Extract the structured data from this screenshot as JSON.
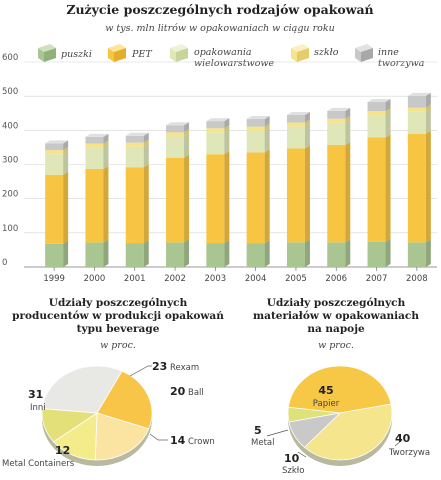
{
  "colors": {
    "puszki": "#a9c591",
    "pet": "#f8c543",
    "wielowarstwowe": "#dfe7b8",
    "szklo": "#f6e38a",
    "inne": "#c8c8c8",
    "pie1": [
      "#f9c548",
      "#fbe3a2",
      "#f4eb8a",
      "#e3e07a",
      "#e8e8e4"
    ],
    "pie2": [
      "#f7c846",
      "#f5e58c",
      "#c9c9c9",
      "#dde27a"
    ]
  },
  "chart_data": [
    {
      "type": "bar",
      "stacked": true,
      "title": "Zużycie poszczególnych rodzajów opakowań",
      "subtitle": "w tys. mln litrów w opakowaniach w ciągu roku",
      "categories": [
        "1999",
        "2000",
        "2001",
        "2002",
        "2003",
        "2004",
        "2005",
        "2006",
        "2007",
        "2008"
      ],
      "ylim": [
        0,
        600
      ],
      "yticks": [
        "0",
        "100",
        "200",
        "300",
        "400",
        "500",
        "600"
      ],
      "grid": true,
      "legend_position": "top",
      "series": [
        {
          "name": "puszki",
          "values": [
            68,
            72,
            70,
            72,
            70,
            70,
            72,
            72,
            74,
            72
          ]
        },
        {
          "name": "PET",
          "values": [
            202,
            215,
            222,
            248,
            260,
            265,
            275,
            285,
            305,
            318
          ]
        },
        {
          "name": "opakowania wielowarstwowe",
          "values": [
            60,
            62,
            60,
            62,
            64,
            64,
            64,
            65,
            65,
            64
          ]
        },
        {
          "name": "szkło",
          "values": [
            12,
            12,
            12,
            12,
            12,
            12,
            12,
            12,
            12,
            12
          ]
        },
        {
          "name": "inne tworzywa",
          "values": [
            20,
            20,
            20,
            21,
            21,
            22,
            22,
            23,
            27,
            35
          ]
        }
      ]
    },
    {
      "type": "pie",
      "title": "Udziały poszczególnych producentów w produkcji opakowań typu beverage",
      "subtitle": "w proc.",
      "labels": [
        "Rexam",
        "Ball",
        "Crown",
        "Metal Containers",
        "Inni"
      ],
      "values": [
        23,
        20,
        14,
        12,
        31
      ]
    },
    {
      "type": "pie",
      "title": "Udziały poszczególnych materiałów w opakowaniach na napoje",
      "subtitle": "w proc.",
      "labels": [
        "Papier",
        "Tworzywa",
        "Szkło",
        "Metal"
      ],
      "values": [
        45,
        40,
        10,
        5
      ]
    }
  ]
}
